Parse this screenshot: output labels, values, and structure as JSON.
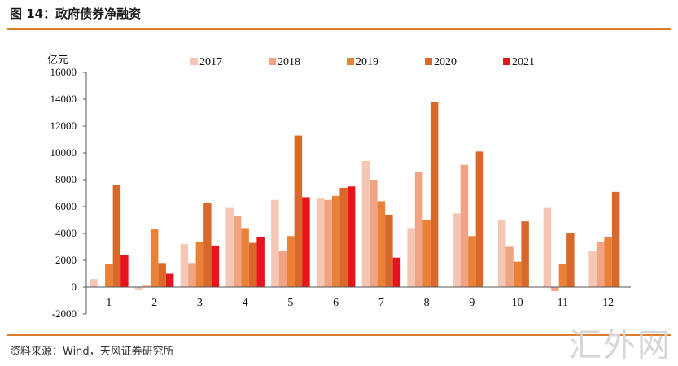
{
  "figure": {
    "title": "图 14：政府债券净融资",
    "source": "资料来源：Wind，天风证券研究所",
    "watermark": "汇外网"
  },
  "chart_data": {
    "type": "bar",
    "title": "政府债券净融资",
    "ylabel": "亿元",
    "xlabel": "",
    "ylim": [
      -2000,
      16000
    ],
    "yticks": [
      -2000,
      0,
      2000,
      4000,
      6000,
      8000,
      10000,
      12000,
      14000,
      16000
    ],
    "grid": false,
    "legend_position": "top",
    "categories": [
      "1",
      "2",
      "3",
      "4",
      "5",
      "6",
      "7",
      "8",
      "9",
      "10",
      "11",
      "12"
    ],
    "series": [
      {
        "name": "2017",
        "color": "#f5c6b4",
        "values": [
          600,
          -200,
          3200,
          5900,
          6500,
          6600,
          9400,
          4400,
          5500,
          5000,
          5900,
          2700
        ]
      },
      {
        "name": "2018",
        "color": "#f0a484",
        "values": [
          0,
          100,
          1800,
          5300,
          2700,
          6500,
          8000,
          8600,
          9100,
          3000,
          -300,
          3400
        ]
      },
      {
        "name": "2019",
        "color": "#ea8137",
        "values": [
          1700,
          4300,
          3400,
          4400,
          3800,
          6800,
          6400,
          5000,
          3800,
          1900,
          1700,
          3700
        ]
      },
      {
        "name": "2020",
        "color": "#d9692b",
        "values": [
          7600,
          1800,
          6300,
          3300,
          11300,
          7400,
          5400,
          13800,
          10100,
          4900,
          4000,
          7100
        ]
      },
      {
        "name": "2021",
        "color": "#e8141b",
        "values": [
          2400,
          1000,
          3100,
          3700,
          6700,
          7500,
          2200,
          null,
          null,
          null,
          null,
          null
        ]
      }
    ]
  }
}
